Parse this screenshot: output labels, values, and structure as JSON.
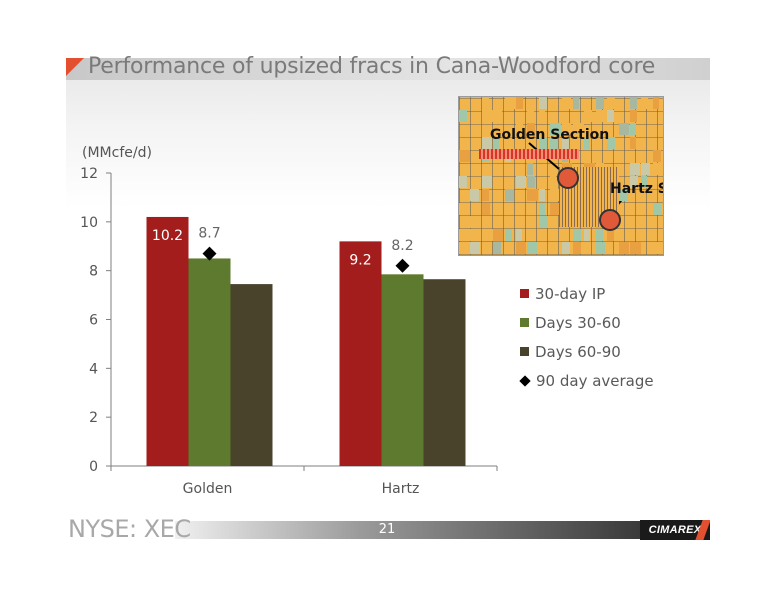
{
  "slide": {
    "title": "Performance of upsized fracs in Cana-Woodford core",
    "units": "(MMcfe/d)",
    "ticker": "NYSE: XEC",
    "page_number": "21",
    "logo_text": "CIMAREX",
    "accent_color": "#e2502f"
  },
  "map": {
    "golden_label": "Golden Section",
    "hartz_label": "Hartz Section"
  },
  "chart_data": {
    "type": "bar",
    "categories": [
      "Golden",
      "Hartz"
    ],
    "series": [
      {
        "name": "30-day IP",
        "values": [
          10.2,
          9.2
        ],
        "color": "#a31d1d",
        "labels": [
          "10.2",
          "9.2"
        ]
      },
      {
        "name": "Days 30-60",
        "values": [
          8.5,
          7.85
        ],
        "color": "#5e7a2e"
      },
      {
        "name": "Days 60-90",
        "values": [
          7.45,
          7.65
        ],
        "color": "#4a432c"
      }
    ],
    "markers": {
      "name": "90 day average",
      "values": [
        8.7,
        8.2
      ],
      "labels": [
        "8.7",
        "8.2"
      ],
      "color": "#000000"
    },
    "yticks": [
      "0",
      "2",
      "4",
      "6",
      "8",
      "10",
      "12"
    ],
    "ylim": [
      0,
      12
    ],
    "legend_position": "right"
  }
}
